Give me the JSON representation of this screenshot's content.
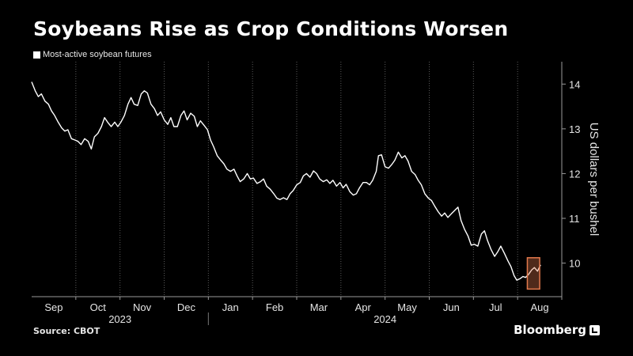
{
  "title": "Soybeans Rise as Crop Conditions Worsen",
  "source": "Source: CBOT",
  "brand": "Bloomberg",
  "chart_data": {
    "type": "line",
    "title": "Soybeans Rise as Crop Conditions Worsen",
    "ylabel": "US dollars per bushel",
    "ylim": [
      9.25,
      14.5
    ],
    "yticks": [
      10,
      11,
      12,
      13,
      14
    ],
    "xlim": [
      0,
      12
    ],
    "months": [
      {
        "label": "Sep",
        "pos": 0.5
      },
      {
        "label": "Oct",
        "pos": 1.5
      },
      {
        "label": "Nov",
        "pos": 2.5
      },
      {
        "label": "Dec",
        "pos": 3.5
      },
      {
        "label": "Jan",
        "pos": 4.5
      },
      {
        "label": "Feb",
        "pos": 5.5
      },
      {
        "label": "Mar",
        "pos": 6.5
      },
      {
        "label": "Apr",
        "pos": 7.5
      },
      {
        "label": "May",
        "pos": 8.5
      },
      {
        "label": "Jun",
        "pos": 9.5
      },
      {
        "label": "Jul",
        "pos": 10.5
      },
      {
        "label": "Aug",
        "pos": 11.5
      }
    ],
    "years": [
      {
        "label": "2023",
        "pos": 2
      },
      {
        "label": "2024",
        "pos": 8
      }
    ],
    "year_divider": 4,
    "series": [
      {
        "name": "Most-active soybean futures",
        "color": "#ffffff",
        "points": [
          [
            0.0,
            14.05
          ],
          [
            0.08,
            13.85
          ],
          [
            0.15,
            13.72
          ],
          [
            0.22,
            13.78
          ],
          [
            0.3,
            13.62
          ],
          [
            0.38,
            13.55
          ],
          [
            0.45,
            13.4
          ],
          [
            0.52,
            13.3
          ],
          [
            0.6,
            13.15
          ],
          [
            0.68,
            13.02
          ],
          [
            0.75,
            12.95
          ],
          [
            0.82,
            12.98
          ],
          [
            0.9,
            12.78
          ],
          [
            0.98,
            12.75
          ],
          [
            1.05,
            12.72
          ],
          [
            1.12,
            12.65
          ],
          [
            1.2,
            12.78
          ],
          [
            1.28,
            12.72
          ],
          [
            1.35,
            12.55
          ],
          [
            1.42,
            12.82
          ],
          [
            1.5,
            12.9
          ],
          [
            1.58,
            13.05
          ],
          [
            1.65,
            13.25
          ],
          [
            1.72,
            13.15
          ],
          [
            1.8,
            13.05
          ],
          [
            1.88,
            13.15
          ],
          [
            1.95,
            13.05
          ],
          [
            2.02,
            13.15
          ],
          [
            2.1,
            13.3
          ],
          [
            2.18,
            13.55
          ],
          [
            2.25,
            13.7
          ],
          [
            2.32,
            13.55
          ],
          [
            2.4,
            13.52
          ],
          [
            2.48,
            13.78
          ],
          [
            2.55,
            13.85
          ],
          [
            2.62,
            13.8
          ],
          [
            2.7,
            13.55
          ],
          [
            2.78,
            13.45
          ],
          [
            2.85,
            13.3
          ],
          [
            2.92,
            13.38
          ],
          [
            3.0,
            13.2
          ],
          [
            3.08,
            13.1
          ],
          [
            3.15,
            13.25
          ],
          [
            3.22,
            13.05
          ],
          [
            3.3,
            13.05
          ],
          [
            3.38,
            13.3
          ],
          [
            3.45,
            13.4
          ],
          [
            3.52,
            13.2
          ],
          [
            3.6,
            13.35
          ],
          [
            3.68,
            13.28
          ],
          [
            3.75,
            13.05
          ],
          [
            3.82,
            13.18
          ],
          [
            3.9,
            13.08
          ],
          [
            3.98,
            12.98
          ],
          [
            4.05,
            12.75
          ],
          [
            4.12,
            12.6
          ],
          [
            4.2,
            12.4
          ],
          [
            4.28,
            12.3
          ],
          [
            4.35,
            12.22
          ],
          [
            4.42,
            12.1
          ],
          [
            4.5,
            12.05
          ],
          [
            4.58,
            12.1
          ],
          [
            4.65,
            11.95
          ],
          [
            4.72,
            11.82
          ],
          [
            4.8,
            11.88
          ],
          [
            4.88,
            12.0
          ],
          [
            4.95,
            11.88
          ],
          [
            5.02,
            11.9
          ],
          [
            5.1,
            11.78
          ],
          [
            5.18,
            11.82
          ],
          [
            5.25,
            11.88
          ],
          [
            5.32,
            11.72
          ],
          [
            5.4,
            11.65
          ],
          [
            5.48,
            11.55
          ],
          [
            5.55,
            11.45
          ],
          [
            5.62,
            11.42
          ],
          [
            5.7,
            11.46
          ],
          [
            5.78,
            11.42
          ],
          [
            5.85,
            11.55
          ],
          [
            5.92,
            11.62
          ],
          [
            6.0,
            11.75
          ],
          [
            6.08,
            11.8
          ],
          [
            6.15,
            11.95
          ],
          [
            6.22,
            12.0
          ],
          [
            6.3,
            11.92
          ],
          [
            6.38,
            12.06
          ],
          [
            6.45,
            12.0
          ],
          [
            6.52,
            11.88
          ],
          [
            6.6,
            11.82
          ],
          [
            6.68,
            11.86
          ],
          [
            6.75,
            11.78
          ],
          [
            6.82,
            11.85
          ],
          [
            6.9,
            11.72
          ],
          [
            6.98,
            11.8
          ],
          [
            7.05,
            11.68
          ],
          [
            7.12,
            11.76
          ],
          [
            7.2,
            11.6
          ],
          [
            7.28,
            11.52
          ],
          [
            7.35,
            11.55
          ],
          [
            7.42,
            11.68
          ],
          [
            7.5,
            11.8
          ],
          [
            7.58,
            11.8
          ],
          [
            7.65,
            11.75
          ],
          [
            7.72,
            11.85
          ],
          [
            7.8,
            12.05
          ],
          [
            7.85,
            12.4
          ],
          [
            7.92,
            12.42
          ],
          [
            8.0,
            12.15
          ],
          [
            8.08,
            12.12
          ],
          [
            8.15,
            12.2
          ],
          [
            8.22,
            12.3
          ],
          [
            8.3,
            12.48
          ],
          [
            8.38,
            12.35
          ],
          [
            8.45,
            12.4
          ],
          [
            8.52,
            12.28
          ],
          [
            8.6,
            12.05
          ],
          [
            8.68,
            11.98
          ],
          [
            8.75,
            11.85
          ],
          [
            8.82,
            11.75
          ],
          [
            8.9,
            11.55
          ],
          [
            8.98,
            11.45
          ],
          [
            9.05,
            11.4
          ],
          [
            9.12,
            11.28
          ],
          [
            9.2,
            11.15
          ],
          [
            9.28,
            11.05
          ],
          [
            9.35,
            11.12
          ],
          [
            9.42,
            11.02
          ],
          [
            9.5,
            11.1
          ],
          [
            9.58,
            11.18
          ],
          [
            9.65,
            11.25
          ],
          [
            9.72,
            10.95
          ],
          [
            9.8,
            10.75
          ],
          [
            9.88,
            10.6
          ],
          [
            9.95,
            10.4
          ],
          [
            10.02,
            10.42
          ],
          [
            10.1,
            10.38
          ],
          [
            10.18,
            10.65
          ],
          [
            10.25,
            10.72
          ],
          [
            10.32,
            10.5
          ],
          [
            10.4,
            10.3
          ],
          [
            10.48,
            10.15
          ],
          [
            10.55,
            10.25
          ],
          [
            10.62,
            10.38
          ],
          [
            10.7,
            10.22
          ],
          [
            10.78,
            10.05
          ],
          [
            10.85,
            9.92
          ],
          [
            10.92,
            9.72
          ],
          [
            10.98,
            9.62
          ],
          [
            11.05,
            9.65
          ],
          [
            11.12,
            9.7
          ],
          [
            11.18,
            9.68
          ],
          [
            11.25,
            9.75
          ],
          [
            11.32,
            9.85
          ],
          [
            11.38,
            9.9
          ],
          [
            11.45,
            9.82
          ],
          [
            11.52,
            9.96
          ]
        ]
      }
    ],
    "highlight": {
      "x": [
        11.22,
        11.5
      ],
      "y": [
        9.42,
        10.12
      ],
      "color": "#e3794c"
    }
  }
}
